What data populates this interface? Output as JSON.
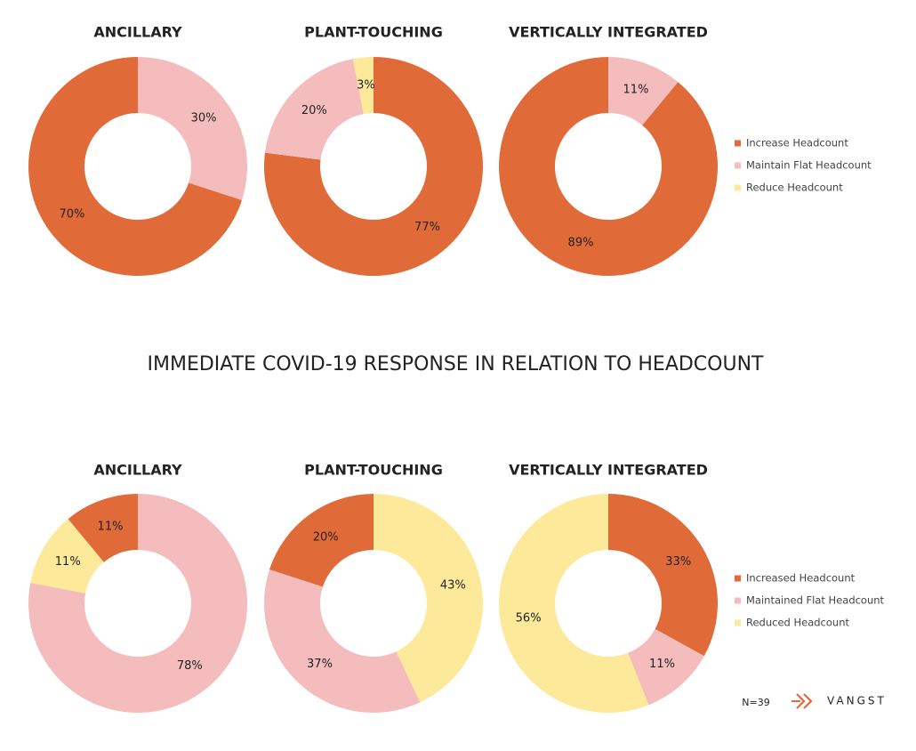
{
  "heading": "IMMEDIATE COVID-19 RESPONSE IN RELATION TO HEADCOUNT",
  "chart_data": [
    {
      "type": "pie",
      "title": "ANCILLARY",
      "values": [
        30,
        70
      ],
      "value_labels": [
        "30%",
        "70%"
      ],
      "colors": [
        "#f4bcbc",
        "#e06a38"
      ]
    },
    {
      "type": "pie",
      "title": "PLANT-TOUCHING",
      "values": [
        77,
        20,
        3
      ],
      "value_labels": [
        "77%",
        "20%",
        "3%"
      ],
      "colors": [
        "#e06a38",
        "#f4bcbc",
        "#fde99a"
      ]
    },
    {
      "type": "pie",
      "title": "VERTICALLY INTEGRATED",
      "values": [
        11,
        89
      ],
      "value_labels": [
        "11%",
        "89%"
      ],
      "colors": [
        "#f4bcbc",
        "#e06a38"
      ]
    },
    {
      "type": "pie",
      "title": "ANCILLARY",
      "values": [
        78,
        11,
        11
      ],
      "value_labels": [
        "78%",
        "11%",
        "11%"
      ],
      "colors": [
        "#f4bcbc",
        "#fde99a",
        "#e06a38"
      ]
    },
    {
      "type": "pie",
      "title": "PLANT-TOUCHING",
      "values": [
        43,
        37,
        20
      ],
      "value_labels": [
        "43%",
        "37%",
        "20%"
      ],
      "colors": [
        "#fde99a",
        "#f4bcbc",
        "#e06a38"
      ]
    },
    {
      "type": "pie",
      "title": "VERTICALLY INTEGRATED",
      "values": [
        33,
        11,
        56
      ],
      "value_labels": [
        "33%",
        "11%",
        "56%"
      ],
      "colors": [
        "#e06a38",
        "#f4bcbc",
        "#fde99a"
      ]
    }
  ],
  "legends": [
    {
      "items": [
        {
          "name": "Increase Headcount",
          "color": "#e06a38"
        },
        {
          "name": "Maintain Flat Headcount",
          "color": "#f4bcbc"
        },
        {
          "name": "Reduce Headcount",
          "color": "#fde99a"
        }
      ]
    },
    {
      "items": [
        {
          "name": "Increased Headcount",
          "color": "#e06a38"
        },
        {
          "name": "Maintained Flat Headcount",
          "color": "#f4bcbc"
        },
        {
          "name": "Reduced Headcount",
          "color": "#fde99a"
        }
      ]
    }
  ],
  "footer": {
    "n_label": "N=39",
    "brand": "VANGST"
  }
}
